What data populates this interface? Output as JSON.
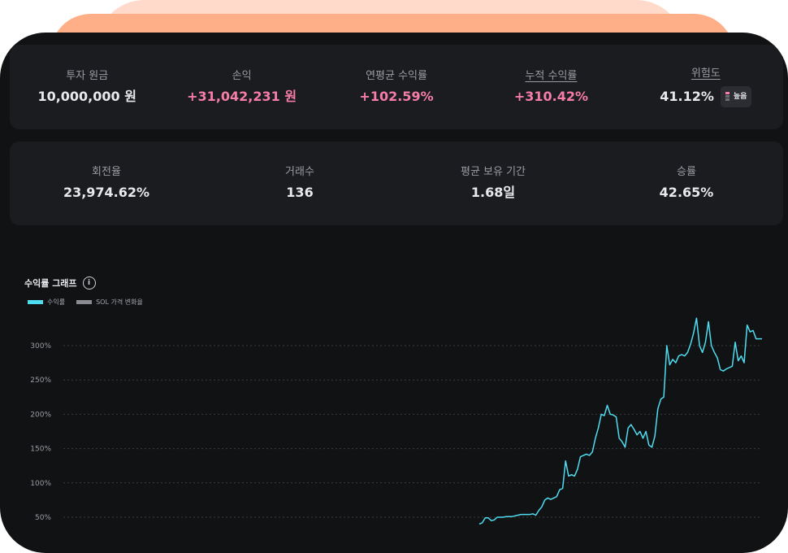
{
  "summary": {
    "principal": {
      "label": "투자 원금",
      "value": "10,000,000 원"
    },
    "pnl": {
      "label": "손익",
      "value": "+31,042,231 원"
    },
    "annual_return": {
      "label": "연평균 수익률",
      "value": "+102.59%"
    },
    "cumulative_return": {
      "label": "누적 수익률",
      "value": "+310.42%"
    },
    "risk": {
      "label": "위험도",
      "value": "41.12%",
      "badge": "높음"
    }
  },
  "trading": {
    "turnover": {
      "label": "회전율",
      "value": "23,974.62%"
    },
    "trades": {
      "label": "거래수",
      "value": "136"
    },
    "avg_hold": {
      "label": "평균 보유 기간",
      "value": "1.68일"
    },
    "win_rate": {
      "label": "승률",
      "value": "42.65%"
    }
  },
  "chart": {
    "title": "수익률 그래프",
    "info_icon": "i"
  },
  "colors": {
    "accent_pink": "#f57da6",
    "series_return": "#4fdcf0",
    "series_price": "#8a8c92"
  },
  "chart_data": {
    "type": "line",
    "series": [
      {
        "name": "수익률",
        "color": "#4fdcf0"
      },
      {
        "name": "SOL 가격 변화율",
        "color": "#8a8c92"
      }
    ],
    "y_ticks": [
      "300%",
      "250%",
      "200%",
      "150%",
      "100%",
      "50%"
    ],
    "y_tick_values": [
      300,
      250,
      200,
      150,
      100,
      50
    ],
    "ylim": [
      45,
      340
    ],
    "grid": true,
    "return_values": [
      40,
      42,
      49,
      49,
      45,
      46,
      50,
      50,
      50,
      51,
      51,
      51,
      52,
      53,
      54,
      54,
      54,
      54,
      55,
      53,
      60,
      65,
      75,
      78,
      76,
      78,
      80,
      90,
      92,
      132,
      110,
      112,
      110,
      120,
      138,
      140,
      142,
      140,
      145,
      165,
      180,
      200,
      198,
      213,
      200,
      199,
      196,
      165,
      160,
      152,
      180,
      185,
      178,
      170,
      175,
      165,
      175,
      155,
      152,
      168,
      208,
      222,
      225,
      300,
      272,
      280,
      275,
      285,
      287,
      285,
      290,
      302,
      318,
      340,
      300,
      290,
      305,
      335,
      300,
      290,
      282,
      265,
      263,
      266,
      268,
      270,
      305,
      278,
      285,
      275,
      330,
      320,
      322,
      310,
      310,
      310
    ],
    "return_x_range": [
      590,
      938
    ]
  }
}
